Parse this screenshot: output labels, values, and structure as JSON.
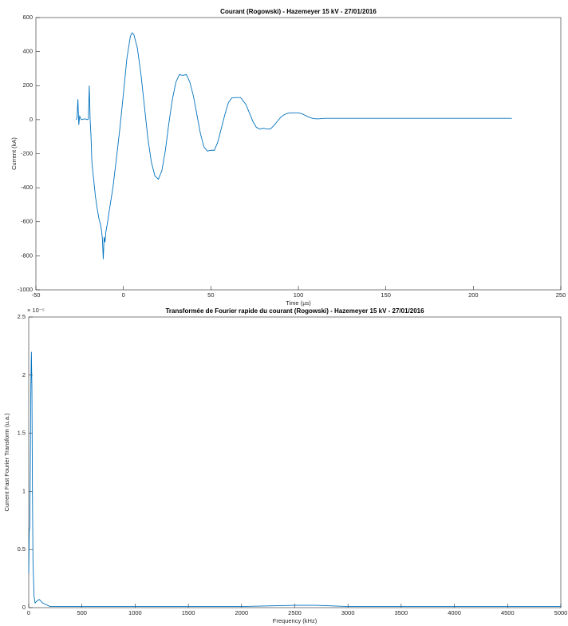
{
  "chart_data": [
    {
      "type": "line",
      "title": "Courant (Rogowski) - Hazemeyer 15 kV - 27/01/2016",
      "xlabel": "Time (µs)",
      "ylabel": "Current (kA)",
      "color": "#0072bd",
      "x": [
        -27,
        -26.5,
        -26,
        -25.5,
        -25,
        -24,
        -22,
        -20.5,
        -20,
        -19.5,
        -19,
        -18.5,
        -18,
        -17,
        -16,
        -15,
        -14,
        -13,
        -12.5,
        -12,
        -11.5,
        -11,
        -10.5,
        -10,
        -9,
        -8,
        -6,
        -4,
        -2,
        0,
        2,
        4,
        5,
        6,
        8,
        10,
        12,
        14,
        16,
        18,
        20,
        22,
        24,
        26,
        28,
        30,
        32,
        34,
        36,
        38,
        40,
        42,
        44,
        46,
        48,
        50,
        52,
        54,
        56,
        58,
        60,
        62,
        64,
        67,
        70,
        72,
        74,
        76,
        78,
        80,
        82,
        84,
        86,
        88,
        90,
        92,
        94,
        96,
        98,
        100,
        102,
        104,
        106,
        108,
        110,
        112,
        115,
        130,
        150,
        170,
        190,
        210,
        222
      ],
      "values": [
        0,
        10,
        120,
        -30,
        20,
        0,
        5,
        0,
        5,
        200,
        0,
        -100,
        -250,
        -350,
        -450,
        -520,
        -580,
        -620,
        -650,
        -700,
        -820,
        -690,
        -720,
        -660,
        -600,
        -530,
        -400,
        -230,
        -50,
        150,
        360,
        490,
        510,
        500,
        420,
        270,
        80,
        -110,
        -250,
        -330,
        -350,
        -300,
        -180,
        -20,
        120,
        220,
        265,
        260,
        265,
        220,
        140,
        30,
        -80,
        -160,
        -185,
        -180,
        -180,
        -130,
        -50,
        30,
        100,
        128,
        130,
        130,
        90,
        40,
        -10,
        -45,
        -55,
        -50,
        -55,
        -55,
        -35,
        -10,
        15,
        30,
        38,
        40,
        40,
        40,
        35,
        25,
        15,
        8,
        5,
        5,
        8,
        8,
        8,
        8,
        8,
        8,
        8
      ],
      "xlim": [
        -50,
        250
      ],
      "ylim": [
        -1000,
        600
      ],
      "xticks": [
        -50,
        0,
        50,
        100,
        150,
        200,
        250
      ],
      "yticks": [
        -1000,
        -800,
        -600,
        -400,
        -200,
        0,
        200,
        400,
        600
      ]
    },
    {
      "type": "line",
      "title": "Transformée de Fourier rapide du courant (Rogowski) - Hazemeyer 15 kV - 27/01/2016",
      "xlabel": "Frequency (kHz)",
      "ylabel": "Current Fast Fourier Transform (u.a.)",
      "annotation": "× 10⁻⁵",
      "color": "#0072bd",
      "x": [
        0,
        5,
        10,
        15,
        20,
        25,
        30,
        35,
        40,
        50,
        60,
        80,
        100,
        130,
        200,
        500,
        1000,
        1500,
        2000,
        2500,
        2700,
        3000,
        3500,
        4000,
        4500,
        5000
      ],
      "values": [
        0.3,
        0.65,
        0.7,
        1.2,
        1.9,
        2.2,
        1.9,
        1.0,
        0.4,
        0.1,
        0.04,
        0.06,
        0.07,
        0.04,
        0.01,
        0.01,
        0.01,
        0.01,
        0.01,
        0.02,
        0.02,
        0.01,
        0.01,
        0.01,
        0.01,
        0.01
      ],
      "xlim": [
        0,
        5000
      ],
      "ylim": [
        0,
        2.5
      ],
      "xticks": [
        0,
        500,
        1000,
        1500,
        2000,
        2500,
        3000,
        3500,
        4000,
        4500,
        5000
      ],
      "yticks": [
        0,
        0.5,
        1,
        1.5,
        2,
        2.5
      ]
    }
  ]
}
